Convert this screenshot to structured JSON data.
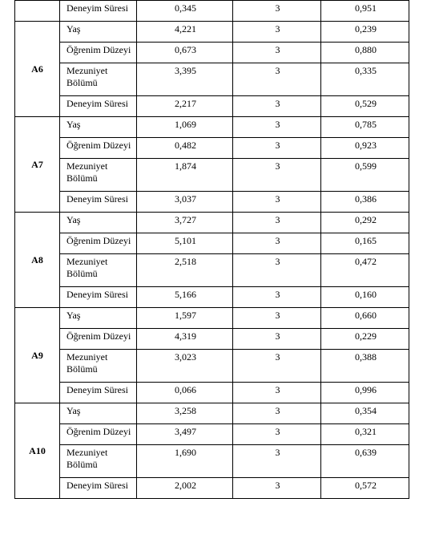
{
  "rows": [
    {
      "group": "",
      "group_rowspan": 1,
      "label": "Deneyim Süresi",
      "v1": "0,345",
      "v2": "3",
      "v3": "0,951"
    },
    {
      "group": "A6",
      "group_rowspan": 4,
      "label": "Yaş",
      "v1": "4,221",
      "v2": "3",
      "v3": "0,239"
    },
    {
      "label": "Öğrenim Düzeyi",
      "v1": "0,673",
      "v2": "3",
      "v3": "0,880"
    },
    {
      "label": "Mezuniyet Bölümü",
      "v1": "3,395",
      "v2": "3",
      "v3": "0,335"
    },
    {
      "label": "Deneyim Süresi",
      "v1": "2,217",
      "v2": "3",
      "v3": "0,529"
    },
    {
      "group": "A7",
      "group_rowspan": 4,
      "label": "Yaş",
      "v1": "1,069",
      "v2": "3",
      "v3": "0,785"
    },
    {
      "label": "Öğrenim Düzeyi",
      "v1": "0,482",
      "v2": "3",
      "v3": "0,923"
    },
    {
      "label": "Mezuniyet Bölümü",
      "v1": "1,874",
      "v2": "3",
      "v3": "0,599"
    },
    {
      "label": "Deneyim Süresi",
      "v1": "3,037",
      "v2": "3",
      "v3": "0,386"
    },
    {
      "group": "A8",
      "group_rowspan": 4,
      "label": "Yaş",
      "v1": "3,727",
      "v2": "3",
      "v3": "0,292"
    },
    {
      "label": "Öğrenim Düzeyi",
      "v1": "5,101",
      "v2": "3",
      "v3": "0,165"
    },
    {
      "label": "Mezuniyet Bölümü",
      "v1": "2,518",
      "v2": "3",
      "v3": "0,472"
    },
    {
      "label": "Deneyim Süresi",
      "v1": "5,166",
      "v2": "3",
      "v3": "0,160"
    },
    {
      "group": "A9",
      "group_rowspan": 4,
      "label": "Yaş",
      "v1": "1,597",
      "v2": "3",
      "v3": "0,660"
    },
    {
      "label": "Öğrenim Düzeyi",
      "v1": "4,319",
      "v2": "3",
      "v3": "0,229"
    },
    {
      "label": "Mezuniyet Bölümü",
      "v1": "3,023",
      "v2": "3",
      "v3": "0,388"
    },
    {
      "label": "Deneyim Süresi",
      "v1": "0,066",
      "v2": "3",
      "v3": "0,996"
    },
    {
      "group": "A10",
      "group_rowspan": 4,
      "label": "Yaş",
      "v1": "3,258",
      "v2": "3",
      "v3": "0,354"
    },
    {
      "label": "Öğrenim Düzeyi",
      "v1": "3,497",
      "v2": "3",
      "v3": "0,321"
    },
    {
      "label": "Mezuniyet Bölümü",
      "v1": "1,690",
      "v2": "3",
      "v3": "0,639"
    },
    {
      "label": "Deneyim Süresi",
      "v1": "2,002",
      "v2": "3",
      "v3": "0,572"
    }
  ]
}
